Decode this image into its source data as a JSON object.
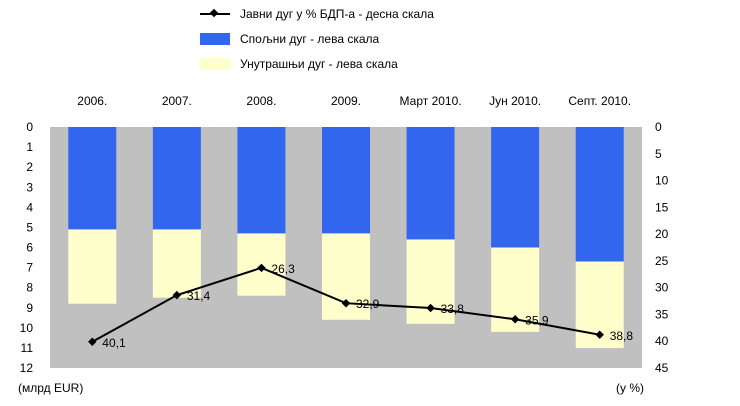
{
  "chart_data": {
    "type": "bar",
    "categories": [
      "2006.",
      "2007.",
      "2008.",
      "2009.",
      "Март 2010.",
      "Јун 2010.",
      "Септ. 2010."
    ],
    "series": [
      {
        "name": "Спољни дуг - лева скала",
        "color": "#3366ee",
        "axis": "left",
        "values": [
          5.1,
          5.1,
          5.3,
          5.3,
          5.6,
          6.0,
          6.7
        ]
      },
      {
        "name": "Унутрашњи дуг - лева скала",
        "color": "#ffffcc",
        "axis": "left",
        "values": [
          3.7,
          3.4,
          3.1,
          4.3,
          4.2,
          4.2,
          4.3
        ]
      },
      {
        "name": "Јавни дуг у % БДП-а - десна скала",
        "color": "#000000",
        "axis": "right",
        "type": "line",
        "values": [
          40.1,
          31.4,
          26.3,
          32.9,
          33.8,
          35.9,
          38.8
        ]
      }
    ],
    "line_labels": [
      "40,1",
      "31,4",
      "26,3",
      "32,9",
      "33,8",
      "35,9",
      "38,8"
    ],
    "left_axis": {
      "label": "(млрд EUR)",
      "ticks": [
        "0",
        "1",
        "2",
        "3",
        "4",
        "5",
        "6",
        "7",
        "8",
        "9",
        "10",
        "11",
        "12"
      ],
      "ylim": [
        0,
        12
      ],
      "inverted": true
    },
    "right_axis": {
      "label": "(у %)",
      "ticks": [
        "0",
        "5",
        "10",
        "15",
        "20",
        "25",
        "30",
        "35",
        "40",
        "45"
      ],
      "ylim": [
        0,
        45
      ],
      "inverted": true
    },
    "legend_position": "top"
  }
}
